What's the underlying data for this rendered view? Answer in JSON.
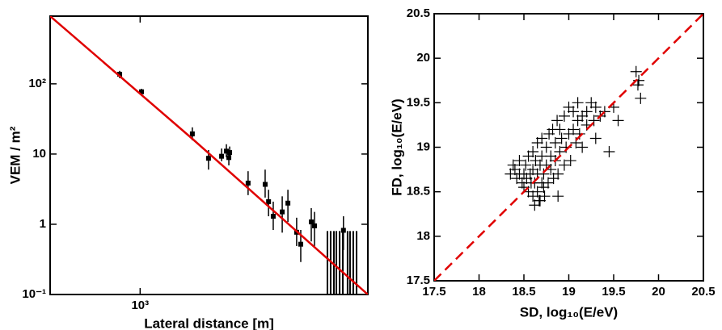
{
  "chart_data": [
    {
      "type": "scatter",
      "xlabel": "Lateral distance [m]",
      "ylabel": "VEM / m²",
      "xscale": "log",
      "yscale": "log",
      "xlim": [
        590,
        3800
      ],
      "ylim": [
        0.1,
        920
      ],
      "xticks": [
        {
          "value": 1000,
          "label": "10³"
        }
      ],
      "yticks": [
        {
          "value": 0.1,
          "label": "10⁻¹"
        },
        1,
        10,
        {
          "value": 100,
          "label": "10²"
        }
      ],
      "color": "#000000",
      "x": [
        887,
        1008,
        1358,
        1493,
        1612,
        1658,
        1682,
        1690,
        1883,
        2081,
        2123,
        2182,
        2300,
        2378,
        2503,
        2564,
        2727,
        2779,
        3293
      ],
      "values": [
        137,
        77,
        19.4,
        8.7,
        9.3,
        11,
        8.9,
        10.5,
        3.86,
        3.7,
        2.1,
        1.3,
        1.5,
        2.0,
        0.77,
        0.52,
        1.08,
        0.95,
        0.82
      ],
      "err_lo": [
        120,
        69,
        15.7,
        6.0,
        7.9,
        9.0,
        6.9,
        8.5,
        2.6,
        2.4,
        1.3,
        0.83,
        0.76,
        1.08,
        0.49,
        0.29,
        0.57,
        0.49,
        0.43
      ],
      "err_hi": [
        153,
        85,
        24,
        11.4,
        12.0,
        13.8,
        11.4,
        12.8,
        5.7,
        6.0,
        3.1,
        2.1,
        2.5,
        3.1,
        1.24,
        0.83,
        1.7,
        1.5,
        1.3
      ],
      "upper_limits": {
        "x": [
          2998,
          3055,
          3114,
          3159,
          3220,
          3281,
          3374,
          3423,
          3488,
          3556
        ],
        "values": [
          0.8,
          0.8,
          0.8,
          0.8,
          0.8,
          0.8,
          0.8,
          0.8,
          0.8,
          0.8
        ]
      },
      "fit": {
        "x": [
          590,
          1358,
          3800
        ],
        "values": [
          920,
          16.5,
          0.1
        ],
        "color": "#e00000"
      }
    },
    {
      "type": "scatter",
      "xlabel": "SD,   log₁₀(E/eV)",
      "ylabel": "FD,   log₁₀(E/eV)",
      "xlim": [
        17.5,
        20.5
      ],
      "ylim": [
        17.5,
        20.5
      ],
      "xticks": [
        17.5,
        18,
        18.5,
        19,
        19.5,
        20,
        20.5
      ],
      "yticks": [
        17.5,
        18,
        18.5,
        19,
        19.5,
        20,
        20.5
      ],
      "color": "#000000",
      "marker": "cross",
      "x": [
        18.4,
        18.42,
        18.45,
        18.45,
        18.48,
        18.5,
        18.5,
        18.52,
        18.53,
        18.55,
        18.55,
        18.57,
        18.58,
        18.6,
        18.6,
        18.6,
        18.62,
        18.63,
        18.65,
        18.65,
        18.65,
        18.67,
        18.68,
        18.7,
        18.7,
        18.7,
        18.72,
        18.73,
        18.75,
        18.75,
        18.77,
        18.78,
        18.8,
        18.8,
        18.82,
        18.83,
        18.85,
        18.85,
        18.87,
        18.88,
        18.9,
        18.9,
        18.92,
        18.95,
        18.95,
        18.97,
        19.0,
        19.0,
        19.02,
        19.05,
        19.05,
        19.08,
        19.1,
        19.1,
        19.12,
        19.15,
        19.15,
        19.2,
        19.2,
        19.25,
        19.28,
        19.3,
        19.3,
        19.35,
        19.4,
        19.45,
        19.5,
        19.55,
        19.75,
        19.77,
        19.78,
        19.8,
        18.35,
        18.38,
        18.62,
        18.68,
        18.72,
        18.88
      ],
      "values": [
        18.75,
        18.65,
        18.7,
        18.85,
        18.6,
        18.7,
        18.55,
        18.8,
        18.65,
        18.5,
        18.9,
        18.7,
        18.6,
        18.45,
        18.75,
        18.95,
        18.6,
        18.85,
        18.5,
        18.7,
        19.05,
        18.4,
        18.8,
        18.6,
        18.9,
        19.1,
        18.7,
        18.45,
        18.8,
        19.0,
        18.6,
        19.15,
        18.75,
        18.9,
        19.2,
        18.65,
        18.85,
        19.05,
        19.3,
        18.7,
        18.95,
        19.2,
        19.1,
        18.8,
        19.35,
        19.0,
        19.15,
        19.45,
        18.85,
        19.2,
        19.4,
        19.05,
        19.3,
        19.5,
        19.15,
        19.35,
        19.0,
        19.4,
        19.25,
        19.5,
        19.3,
        19.45,
        19.1,
        19.35,
        19.4,
        18.95,
        19.45,
        19.3,
        19.85,
        19.7,
        19.75,
        19.55,
        18.7,
        18.8,
        18.35,
        18.4,
        18.55,
        18.45
      ],
      "diagonal": {
        "x": [
          17.5,
          20.5
        ],
        "values": [
          17.5,
          20.5
        ],
        "color": "#e00000",
        "dashed": true
      }
    }
  ]
}
